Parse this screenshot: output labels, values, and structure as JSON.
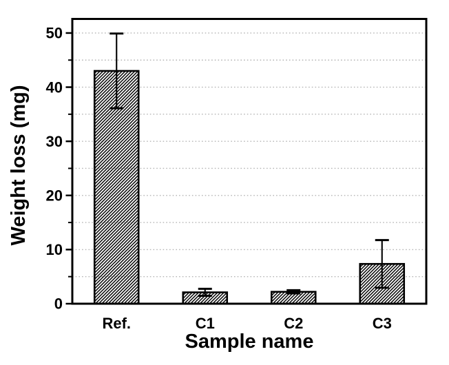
{
  "figure": {
    "background": "#ffffff"
  },
  "chart_data": {
    "type": "bar",
    "title": "",
    "xlabel": "Sample name",
    "ylabel": "Weight loss (mg)",
    "categories": [
      "Ref.",
      "C1",
      "C2",
      "C3"
    ],
    "values": [
      43.0,
      2.1,
      2.2,
      7.35
    ],
    "error_bars": [
      6.9,
      0.65,
      0.3,
      4.4
    ],
    "ylim": [
      0,
      52.6
    ],
    "yticks_major": [
      0,
      10,
      20,
      30,
      40,
      50
    ],
    "ytick_labels": [
      "0",
      "10",
      "20",
      "30",
      "40",
      "50"
    ],
    "yticks_minor": [
      5,
      15,
      25,
      35,
      45
    ],
    "gridlines_y": [
      5,
      10,
      15,
      20,
      25,
      30,
      35,
      40,
      45,
      50
    ],
    "grid_style": "dotted",
    "legend": "none",
    "bar_style": {
      "fill": "#ffffff",
      "hatch": "diagonal-forward",
      "edge_color": "#000000"
    },
    "colors": {
      "axis": "#000000",
      "text": "#000000",
      "grid": "#b4b4b4",
      "background": "#ffffff"
    }
  }
}
